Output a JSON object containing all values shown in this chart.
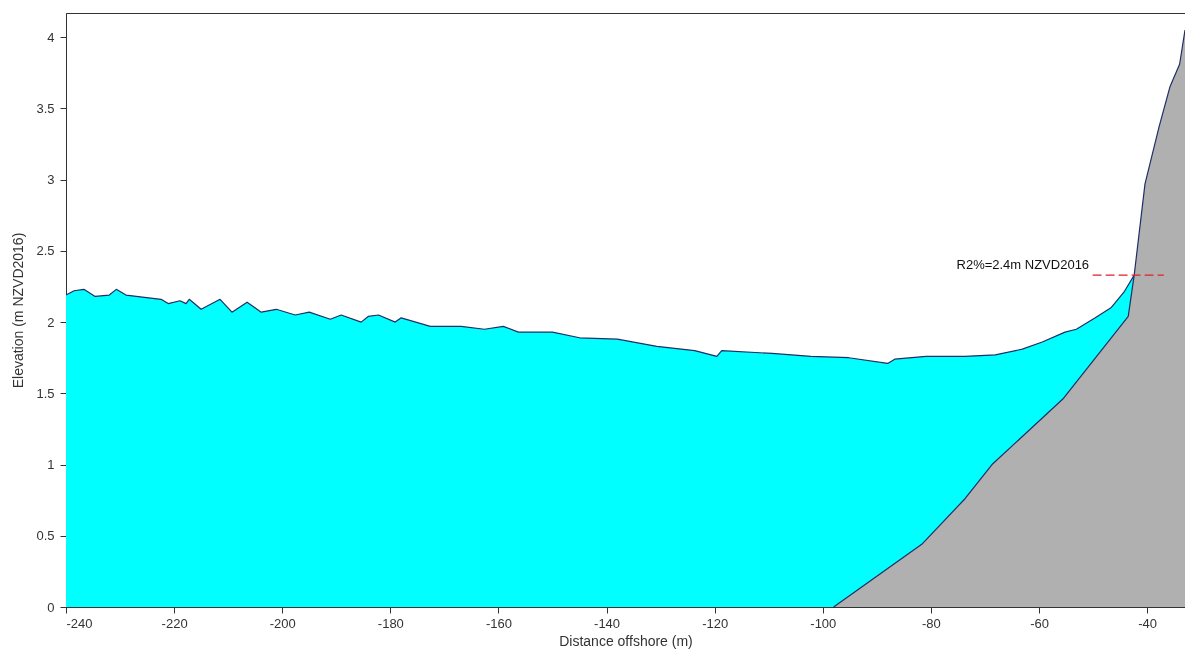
{
  "chart_data": {
    "type": "area",
    "xlabel": "Distance offshore (m)",
    "ylabel": "Elevation (m NZVD2016)",
    "xlim": [
      -240,
      -33
    ],
    "xticks": [
      -240,
      -220,
      -200,
      -180,
      -160,
      -140,
      -120,
      -100,
      -80,
      -60,
      -40
    ],
    "ylim": [
      0,
      4.17
    ],
    "yticks": [
      0,
      0.5,
      1,
      1.5,
      2,
      2.5,
      3,
      3.5,
      4
    ],
    "grid": false,
    "series": [
      {
        "color": "#00ffff",
        "x": [
          -240,
          -238.5,
          -236.7,
          -234.6,
          -232,
          -230.7,
          -228.9,
          -222.4,
          -221.1,
          -218.9,
          -217.8,
          -217.2,
          -215,
          -211.5,
          -209.3,
          -206.5,
          -203.9,
          -201.1,
          -197.6,
          -195,
          -191.1,
          -189.1,
          -185.4,
          -184.1,
          -182.2,
          -179.1,
          -178,
          -172.6,
          -166.9,
          -162.6,
          -159.1,
          -156.3,
          -150,
          -145,
          -138,
          -130.7,
          -123.7,
          -119.6,
          -118.7,
          -109.4,
          -102.2,
          -95.2,
          -88,
          -86.7,
          -80.9,
          -73.7,
          -68.1,
          -63.1,
          -59.4,
          -55.2,
          -53.1,
          -49.6,
          -46.7,
          -44.3,
          -42.4
        ],
        "values": [
          2.19,
          2.22,
          2.23,
          2.18,
          2.19,
          2.23,
          2.19,
          2.16,
          2.13,
          2.15,
          2.13,
          2.16,
          2.09,
          2.16,
          2.07,
          2.14,
          2.07,
          2.09,
          2.05,
          2.07,
          2.02,
          2.05,
          2.0,
          2.04,
          2.05,
          2.0,
          2.03,
          1.97,
          1.97,
          1.95,
          1.97,
          1.93,
          1.93,
          1.89,
          1.88,
          1.83,
          1.8,
          1.76,
          1.8,
          1.78,
          1.76,
          1.75,
          1.71,
          1.74,
          1.76,
          1.76,
          1.77,
          1.81,
          1.86,
          1.93,
          1.95,
          2.03,
          2.1,
          2.21,
          2.33
        ]
      },
      {
        "color": "#b0b0b0",
        "x": [
          -98,
          -81.7,
          -73.7,
          -68.7,
          -55.6,
          -43.5,
          -42.4,
          -40.4,
          -37.8,
          -35.8,
          -34,
          -33
        ],
        "values": [
          0,
          0.44,
          0.76,
          1.0,
          1.46,
          2.04,
          2.33,
          2.97,
          3.37,
          3.65,
          3.81,
          4.05
        ]
      },
      {
        "type": "line",
        "name": "R2%=2.4m NZVD2016",
        "color": "#e0202a",
        "line_style": "dashed",
        "x": [
          -50,
          -37
        ],
        "values": [
          2.33,
          2.33
        ]
      }
    ]
  }
}
